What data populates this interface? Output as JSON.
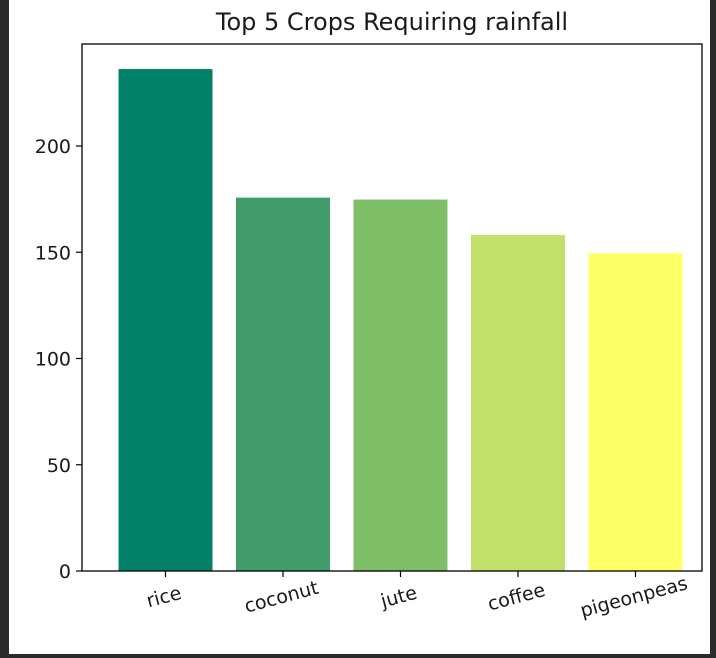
{
  "chart_data": {
    "type": "bar",
    "title": "Top 5 Crops Requiring rainfall",
    "categories": [
      "rice",
      "coconut",
      "jute",
      "coffee",
      "pigeonpeas"
    ],
    "values": [
      236.2,
      175.7,
      174.8,
      158.1,
      149.5
    ],
    "colors": [
      "#008066",
      "#409c68",
      "#7fbf68",
      "#c1e06a",
      "#ffff66"
    ],
    "yticks": [
      0,
      50,
      100,
      150,
      200
    ],
    "ylim": [
      0,
      248
    ],
    "grid": false,
    "xlabel": "",
    "ylabel": ""
  }
}
